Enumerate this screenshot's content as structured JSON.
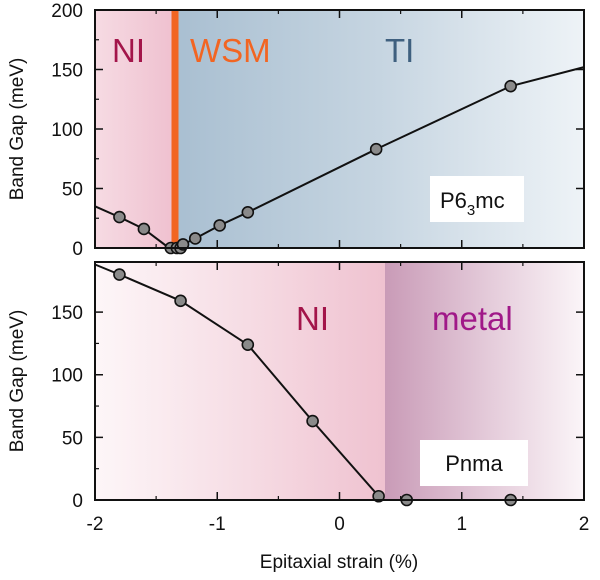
{
  "chart_data": [
    {
      "type": "line",
      "panel": "top",
      "ylabel": "Band Gap (meV)",
      "xlim": [
        -2,
        2
      ],
      "ylim": [
        0,
        200
      ],
      "yticks": [
        0,
        50,
        100,
        150,
        200
      ],
      "series": [
        {
          "x": [
            -2.0,
            -1.8,
            -1.6,
            -1.42,
            -1.38,
            -1.33,
            -1.3,
            -1.28,
            -1.18,
            -0.98,
            -0.75,
            0.3,
            1.4,
            2.0
          ],
          "y": [
            35,
            26,
            16,
            2,
            0,
            0,
            0,
            3,
            8,
            19,
            30,
            83,
            136,
            152
          ],
          "markers": [
            false,
            true,
            true,
            false,
            true,
            true,
            true,
            true,
            true,
            true,
            true,
            true,
            true,
            false
          ]
        }
      ],
      "regions": [
        {
          "label": "NI",
          "from": -2,
          "to": -1.35,
          "color": "#a3154a"
        },
        {
          "label": "WSM",
          "at": -1.35,
          "color": "#f26522"
        },
        {
          "label": "TI",
          "from": -1.35,
          "to": 2,
          "color": "#3f607f"
        }
      ],
      "phase_label": {
        "base": "P6",
        "sub": "3",
        "rest": "mc"
      }
    },
    {
      "type": "line",
      "panel": "bottom",
      "xlabel": "Epitaxial strain (%)",
      "ylabel": "Band Gap (meV)",
      "xlim": [
        -2,
        2
      ],
      "ylim": [
        0,
        190
      ],
      "xticks": [
        "-2",
        "-1",
        "0",
        "1",
        "2"
      ],
      "yticks": [
        0,
        50,
        100,
        150
      ],
      "series": [
        {
          "x": [
            -2.0,
            -1.8,
            -1.3,
            -0.75,
            -0.22,
            0.32,
            0.36,
            0.55,
            1.4
          ],
          "y": [
            188,
            180,
            159,
            124,
            63,
            3,
            0,
            0,
            0
          ],
          "markers": [
            false,
            true,
            true,
            true,
            true,
            true,
            false,
            true,
            true
          ]
        }
      ],
      "regions": [
        {
          "label": "NI",
          "from": -2,
          "to": 0.35,
          "color": "#a3154a"
        },
        {
          "label": "metal",
          "from": 0.35,
          "to": 2,
          "color": "#a01888"
        }
      ],
      "phase_label": {
        "text": "Pnma"
      }
    }
  ]
}
